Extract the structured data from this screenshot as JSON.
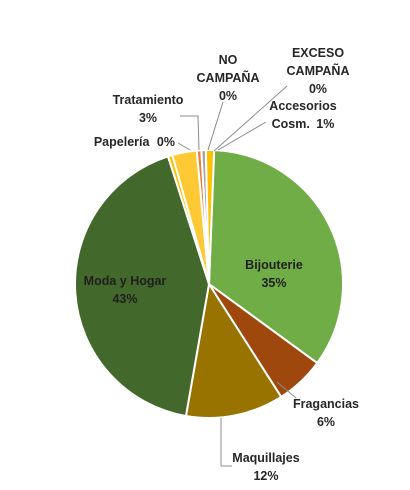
{
  "chart_data": {
    "type": "pie",
    "title": "",
    "slices": [
      {
        "name": "Bijouterie",
        "value": 35,
        "label": "35%",
        "color": "#70ad47"
      },
      {
        "name": "Fragancias",
        "value": 6,
        "label": "6%",
        "color": "#9e480e"
      },
      {
        "name": "Maquillajes",
        "value": 12,
        "label": "12%",
        "color": "#997300"
      },
      {
        "name": "Moda y Hogar",
        "value": 43,
        "label": "43%",
        "color": "#43682b"
      },
      {
        "name": "Papelería",
        "value": 0,
        "label": "0%",
        "color": "#ffc000"
      },
      {
        "name": "Tratamiento",
        "value": 3,
        "label": "3%",
        "color": "#ffc935"
      },
      {
        "name": "NO CAMPAÑA",
        "value": 0,
        "label": "0%",
        "color": "#ed7d31"
      },
      {
        "name": "EXCESO CAMPAÑA",
        "value": 0,
        "label": "0%",
        "color": "#a5a5a5"
      },
      {
        "name": "Accesorios Cosm.",
        "value": 1,
        "label": "1%",
        "color": "#ffc000"
      }
    ]
  }
}
